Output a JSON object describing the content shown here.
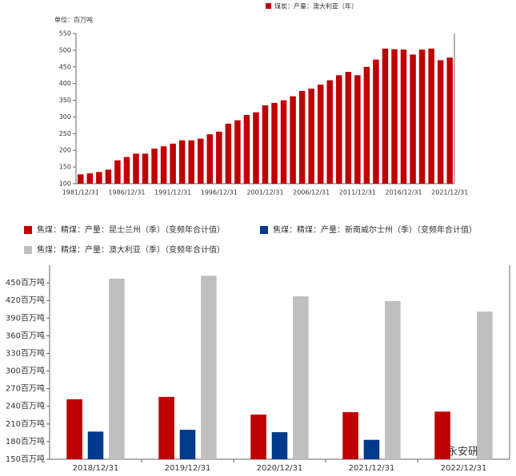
{
  "chart_data": [
    {
      "type": "bar",
      "unit_label": "单位：百万吨",
      "categories": [
        "1981/12/31",
        null,
        null,
        null,
        null,
        "1986/12/31",
        null,
        null,
        null,
        null,
        "1991/12/31",
        null,
        null,
        null,
        null,
        "1996/12/31",
        null,
        null,
        null,
        null,
        "2001/12/31",
        null,
        null,
        null,
        null,
        "2006/12/31",
        null,
        null,
        null,
        null,
        "2011/12/31",
        null,
        null,
        null,
        null,
        "2016/12/31",
        null,
        null,
        null,
        null,
        "2021/12/31"
      ],
      "series": [
        {
          "name": "煤炭：产量：澳大利亚（年）",
          "color": "#c00000",
          "values": [
            128,
            131,
            135,
            142,
            170,
            180,
            190,
            190,
            205,
            212,
            220,
            230,
            230,
            235,
            248,
            256,
            280,
            290,
            306,
            314,
            335,
            342,
            350,
            362,
            378,
            385,
            397,
            410,
            425,
            435,
            425,
            450,
            472,
            505,
            503,
            502,
            487,
            502,
            505,
            470,
            478
          ]
        }
      ],
      "ylim": [
        100,
        550
      ],
      "yticks": [
        100,
        150,
        200,
        250,
        300,
        350,
        400,
        450,
        500,
        550
      ]
    },
    {
      "type": "bar",
      "categories": [
        "2018/12/31",
        "2019/12/31",
        "2020/12/31",
        "2021/12/31",
        "2022/12/31"
      ],
      "series": [
        {
          "name": "焦煤：精煤：产量：昆士兰州（季）（变频年合计值）",
          "color": "#c00000",
          "values": [
            252,
            256,
            226,
            230,
            231
          ]
        },
        {
          "name": "焦煤：精煤：产量：新南威尔士州（季）（变频年合计值）",
          "color": "#003a8c",
          "values": [
            197,
            200,
            196,
            183,
            null
          ]
        },
        {
          "name": "焦煤：精煤：产量：澳大利亚（季）（变频年合计值）",
          "color": "#bfbfbf",
          "values": [
            457,
            462,
            427,
            419,
            401
          ]
        }
      ],
      "ylim": [
        150,
        480
      ],
      "yticks": [
        {
          "value": 150,
          "label": "150百万吨"
        },
        {
          "value": 180,
          "label": "180百万吨"
        },
        {
          "value": 210,
          "label": "210百万吨"
        },
        {
          "value": 240,
          "label": "240百万吨"
        },
        {
          "value": 270,
          "label": "270百万吨"
        },
        {
          "value": 300,
          "label": "300百万吨"
        },
        {
          "value": 330,
          "label": "330百万吨"
        },
        {
          "value": 360,
          "label": "360百万吨"
        },
        {
          "value": 390,
          "label": "390百万吨"
        },
        {
          "value": 420,
          "label": "420百万吨"
        },
        {
          "value": 450,
          "label": "450百万吨"
        }
      ],
      "watermark": "永安研究"
    }
  ]
}
